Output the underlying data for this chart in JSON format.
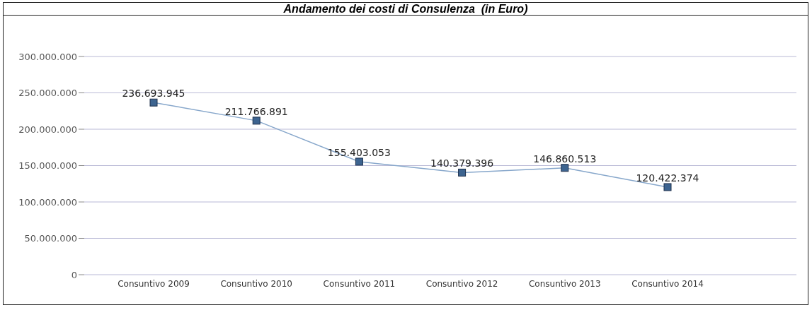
{
  "chart_data": {
    "type": "line",
    "title": "Andamento dei costi di Consulenza  (in Euro)",
    "categories": [
      "Consuntivo 2009",
      "Consuntivo 2010",
      "Consuntivo 2011",
      "Consuntivo 2012",
      "Consuntivo 2013",
      "Consuntivo 2014"
    ],
    "values": [
      236693945,
      211766891,
      155403053,
      140379396,
      146860513,
      120422374
    ],
    "color": "#87a7cb",
    "ylim": [
      0,
      300000000
    ],
    "yticks": [
      {
        "value": 0,
        "label": "0"
      },
      {
        "value": 50000000,
        "label": "50.000.000"
      },
      {
        "value": 100000000,
        "label": "100.000.000"
      },
      {
        "value": 150000000,
        "label": "150.000.000"
      },
      {
        "value": 200000000,
        "label": "200.000.000"
      },
      {
        "value": 250000000,
        "label": "250.000.000"
      },
      {
        "value": 300000000,
        "label": "300.000.000"
      }
    ],
    "value_labels": [
      "236.693.945",
      "211.766.891",
      "155.403.053",
      "140.379.396",
      "146.860.513",
      "120.422.374"
    ],
    "grid": "y",
    "marker": "square",
    "line_style": "solid"
  }
}
